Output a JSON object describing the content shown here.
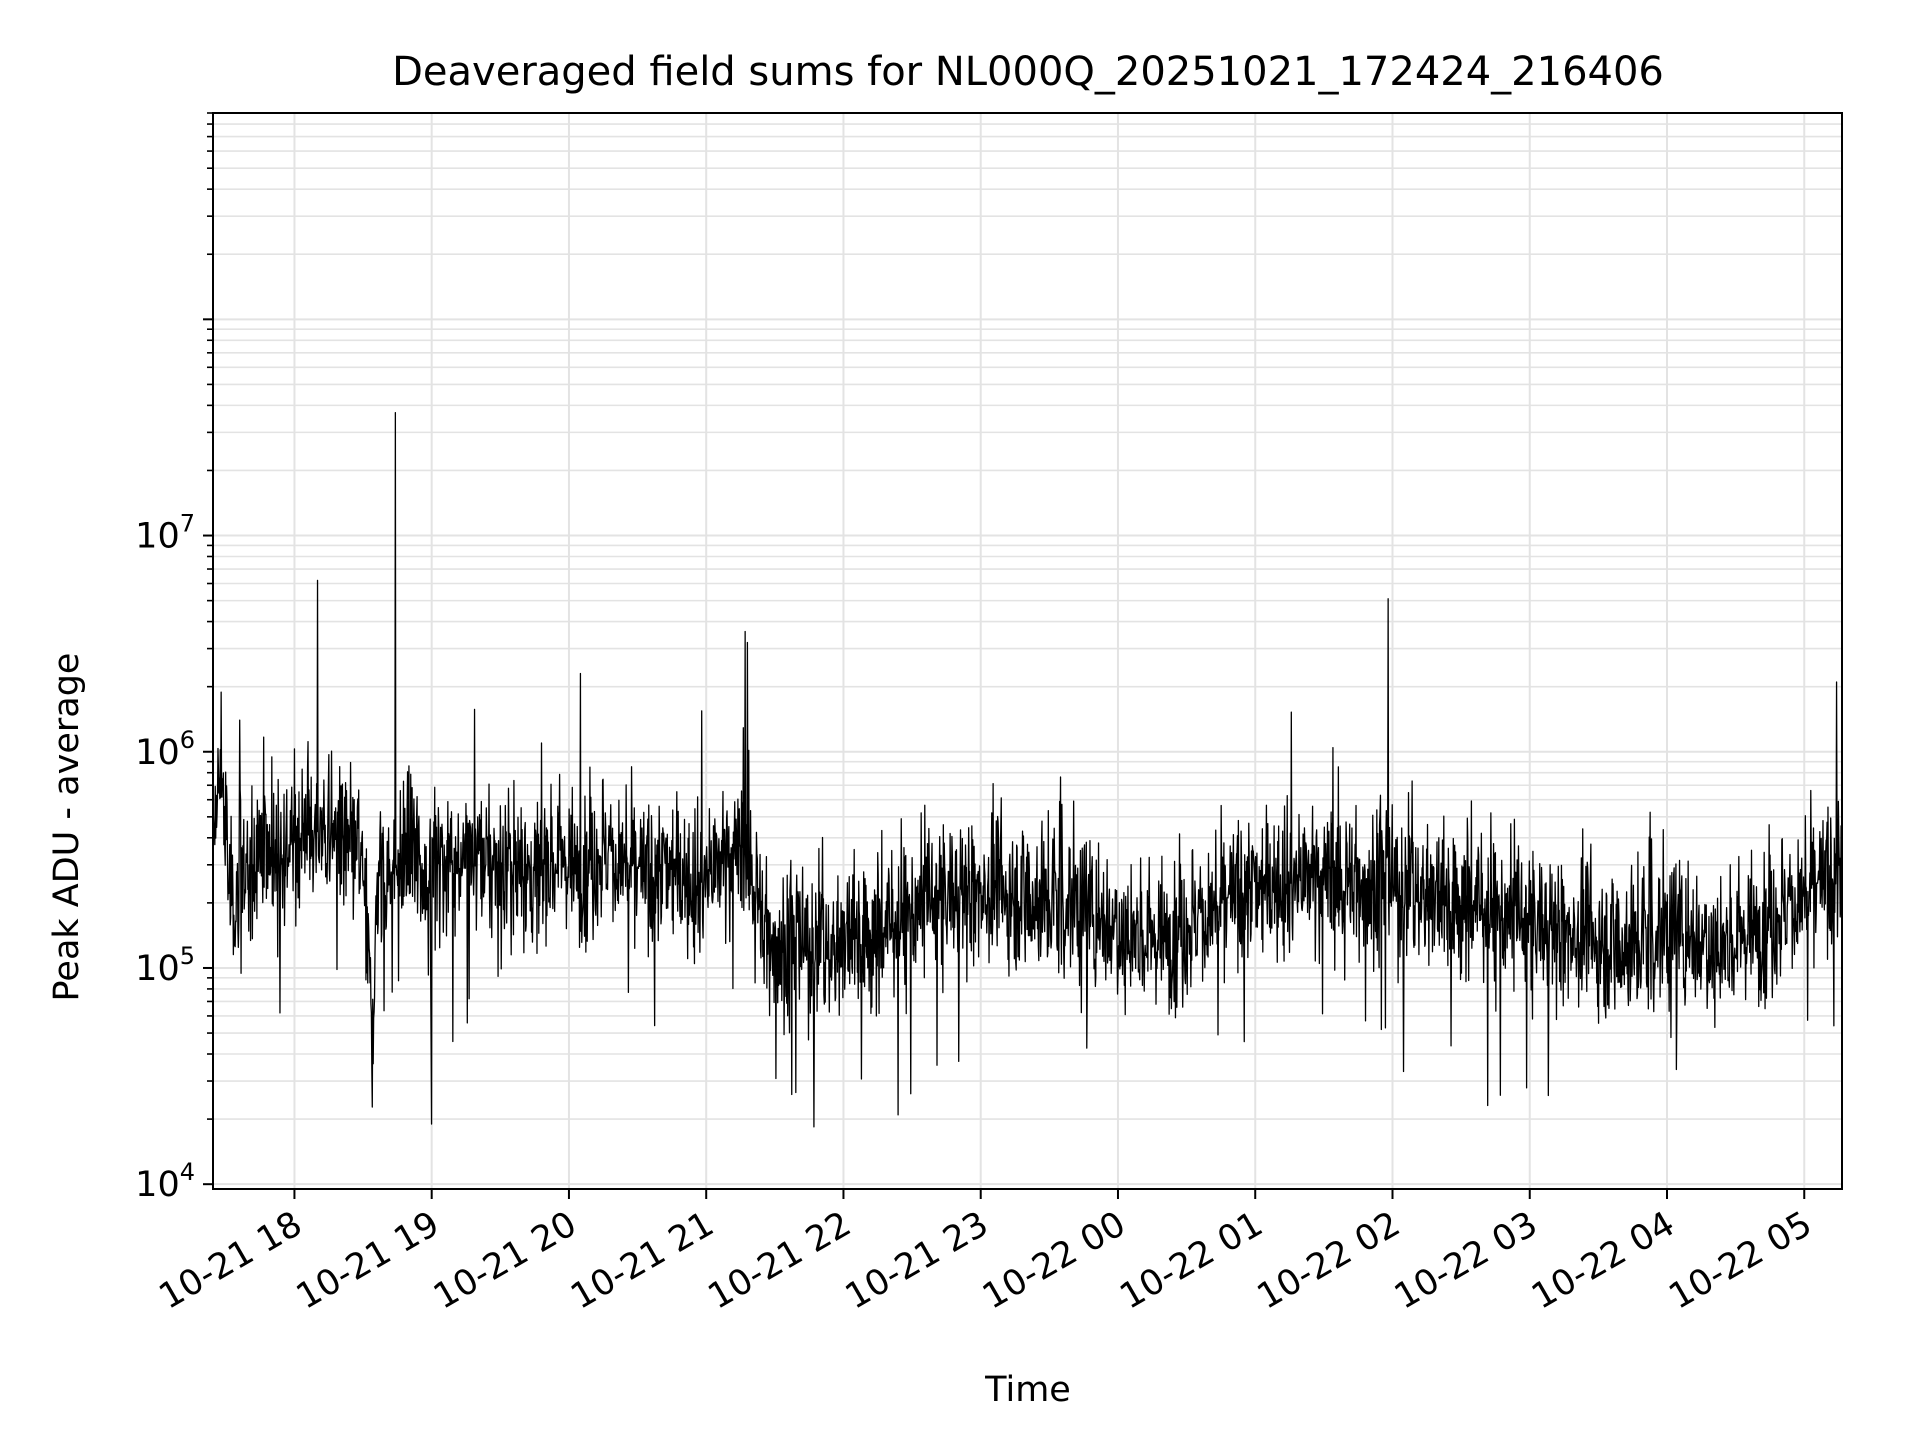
{
  "chart_data": {
    "type": "line",
    "title": "Deaveraged field sums for NL000Q_20251021_172424_216406",
    "xlabel": "Time",
    "ylabel": "Peak ADU - average",
    "y_scale": "log",
    "x_range": [
      "2025-10-21 17:24:24",
      "2025-10-22 05:16:30"
    ],
    "ylim": [
      9500,
      900000000
    ],
    "x_ticks": [
      {
        "value": "2025-10-21 18:00",
        "label": "10-21 18"
      },
      {
        "value": "2025-10-21 19:00",
        "label": "10-21 19"
      },
      {
        "value": "2025-10-21 20:00",
        "label": "10-21 20"
      },
      {
        "value": "2025-10-21 21:00",
        "label": "10-21 21"
      },
      {
        "value": "2025-10-21 22:00",
        "label": "10-21 22"
      },
      {
        "value": "2025-10-21 23:00",
        "label": "10-21 23"
      },
      {
        "value": "2025-10-22 00:00",
        "label": "10-22 00"
      },
      {
        "value": "2025-10-22 01:00",
        "label": "10-22 01"
      },
      {
        "value": "2025-10-22 02:00",
        "label": "10-22 02"
      },
      {
        "value": "2025-10-22 03:00",
        "label": "10-22 03"
      },
      {
        "value": "2025-10-22 04:00",
        "label": "10-22 04"
      },
      {
        "value": "2025-10-22 05:00",
        "label": "10-22 05"
      }
    ],
    "y_ticks": [
      {
        "value": 10000,
        "base": "10",
        "exp": "4"
      },
      {
        "value": 100000,
        "base": "10",
        "exp": "5"
      },
      {
        "value": 1000000,
        "base": "10",
        "exp": "6"
      },
      {
        "value": 10000000,
        "base": "10",
        "exp": "7"
      }
    ],
    "grid": true,
    "line_color": "#000000",
    "grid_color": "#e3e3e3",
    "series": [
      {
        "points": [
          [
            "2025-10-21 17:24",
            300000
          ],
          [
            "2025-10-21 17:28",
            900000
          ],
          [
            "2025-10-21 17:32",
            200000
          ],
          [
            "2025-10-21 17:36",
            1400000
          ],
          [
            "2025-10-21 17:40",
            250000
          ],
          [
            "2025-10-21 17:45",
            450000
          ],
          [
            "2025-10-21 17:50",
            300000
          ],
          [
            "2025-10-21 17:55",
            400000
          ],
          [
            "2025-10-21 18:00",
            350000
          ],
          [
            "2025-10-21 18:05",
            500000
          ],
          [
            "2025-10-21 18:10",
            6200000
          ],
          [
            "2025-10-21 18:12",
            400000
          ],
          [
            "2025-10-21 18:18",
            450000
          ],
          [
            "2025-10-21 18:24",
            350000
          ],
          [
            "2025-10-21 18:30",
            300000
          ],
          [
            "2025-10-21 18:34",
            53000
          ],
          [
            "2025-10-21 18:37",
            350000
          ],
          [
            "2025-10-21 18:40",
            250000
          ],
          [
            "2025-10-21 18:44",
            37000000
          ],
          [
            "2025-10-21 18:46",
            300000
          ],
          [
            "2025-10-21 18:52",
            350000
          ],
          [
            "2025-10-21 18:58",
            250000
          ],
          [
            "2025-10-21 19:05",
            300000
          ],
          [
            "2025-10-21 19:15",
            350000
          ],
          [
            "2025-10-21 19:25",
            300000
          ],
          [
            "2025-10-21 19:35",
            300000
          ],
          [
            "2025-10-21 19:45",
            250000
          ],
          [
            "2025-10-21 19:55",
            350000
          ],
          [
            "2025-10-21 20:01",
            300000
          ],
          [
            "2025-10-21 20:05",
            2300000
          ],
          [
            "2025-10-21 20:07",
            300000
          ],
          [
            "2025-10-21 20:15",
            350000
          ],
          [
            "2025-10-21 20:25",
            300000
          ],
          [
            "2025-10-21 20:35",
            250000
          ],
          [
            "2025-10-21 20:45",
            300000
          ],
          [
            "2025-10-21 20:55",
            250000
          ],
          [
            "2025-10-21 21:05",
            300000
          ],
          [
            "2025-10-21 21:12",
            350000
          ],
          [
            "2025-10-21 21:17",
            3600000
          ],
          [
            "2025-10-21 21:18",
            3200000
          ],
          [
            "2025-10-21 21:20",
            300000
          ],
          [
            "2025-10-21 21:25",
            150000
          ],
          [
            "2025-10-21 21:35",
            120000
          ],
          [
            "2025-10-21 21:45",
            130000
          ],
          [
            "2025-10-21 21:55",
            120000
          ],
          [
            "2025-10-21 22:05",
            150000
          ],
          [
            "2025-10-21 22:15",
            140000
          ],
          [
            "2025-10-21 22:25",
            180000
          ],
          [
            "2025-10-21 22:35",
            200000
          ],
          [
            "2025-10-21 22:45",
            220000
          ],
          [
            "2025-10-21 22:55",
            230000
          ],
          [
            "2025-10-21 23:05",
            230000
          ],
          [
            "2025-10-21 23:15",
            220000
          ],
          [
            "2025-10-21 23:25",
            210000
          ],
          [
            "2025-10-21 23:35",
            200000
          ],
          [
            "2025-10-21 23:45",
            190000
          ],
          [
            "2025-10-21 23:55",
            170000
          ],
          [
            "2025-10-22 00:05",
            150000
          ],
          [
            "2025-10-22 00:15",
            140000
          ],
          [
            "2025-10-22 00:25",
            150000
          ],
          [
            "2025-10-22 00:35",
            170000
          ],
          [
            "2025-10-22 00:45",
            190000
          ],
          [
            "2025-10-22 00:55",
            220000
          ],
          [
            "2025-10-22 01:05",
            250000
          ],
          [
            "2025-10-22 01:15",
            260000
          ],
          [
            "2025-10-22 01:25",
            270000
          ],
          [
            "2025-10-22 01:35",
            260000
          ],
          [
            "2025-10-22 01:45",
            250000
          ],
          [
            "2025-10-22 01:52",
            240000
          ],
          [
            "2025-10-22 01:58",
            5100000
          ],
          [
            "2025-10-22 01:59",
            250000
          ],
          [
            "2025-10-22 02:05",
            230000
          ],
          [
            "2025-10-22 02:15",
            220000
          ],
          [
            "2025-10-22 02:25",
            210000
          ],
          [
            "2025-10-22 02:35",
            200000
          ],
          [
            "2025-10-22 02:45",
            190000
          ],
          [
            "2025-10-22 02:55",
            170000
          ],
          [
            "2025-10-22 03:05",
            160000
          ],
          [
            "2025-10-22 03:15",
            150000
          ],
          [
            "2025-10-22 03:25",
            140000
          ],
          [
            "2025-10-22 03:35",
            130000
          ],
          [
            "2025-10-22 03:45",
            130000
          ],
          [
            "2025-10-22 03:55",
            140000
          ],
          [
            "2025-10-22 04:05",
            150000
          ],
          [
            "2025-10-22 04:15",
            140000
          ],
          [
            "2025-10-22 04:25",
            130000
          ],
          [
            "2025-10-22 04:35",
            150000
          ],
          [
            "2025-10-22 04:45",
            170000
          ],
          [
            "2025-10-22 04:55",
            200000
          ],
          [
            "2025-10-22 05:05",
            230000
          ],
          [
            "2025-10-22 05:12",
            250000
          ],
          [
            "2025-10-22 05:14",
            2100000
          ],
          [
            "2025-10-22 05:16",
            300000
          ]
        ]
      }
    ]
  }
}
